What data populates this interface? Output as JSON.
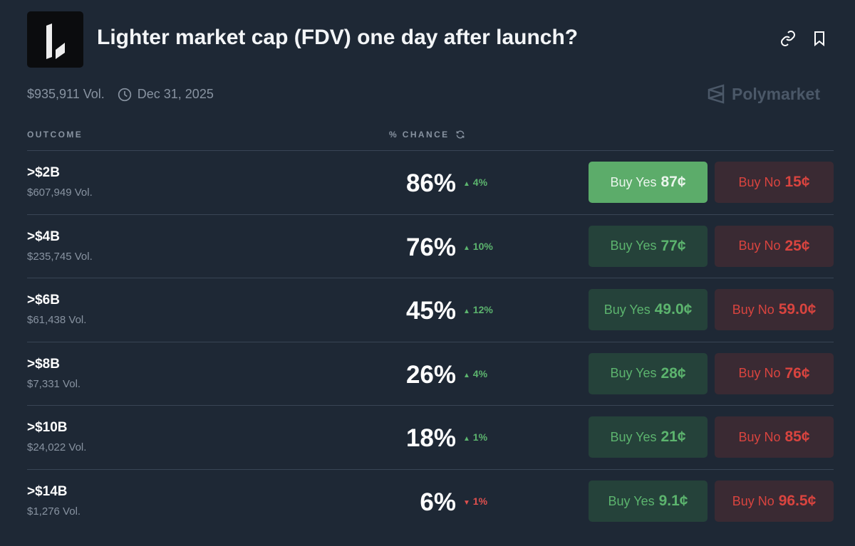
{
  "header": {
    "title": "Lighter market cap (FDV) one day after launch?",
    "volume": "$935,911 Vol.",
    "date": "Dec 31, 2025",
    "brand": "Polymarket"
  },
  "table": {
    "col_outcome": "OUTCOME",
    "col_chance": "% CHANCE"
  },
  "outcomes": [
    {
      "name": ">$2B",
      "volume": "$607,949 Vol.",
      "chance": "86%",
      "change": "4%",
      "direction": "up",
      "yes_label": "Buy Yes",
      "yes_price": "87¢",
      "no_label": "Buy No",
      "no_price": "15¢"
    },
    {
      "name": ">$4B",
      "volume": "$235,745 Vol.",
      "chance": "76%",
      "change": "10%",
      "direction": "up",
      "yes_label": "Buy Yes",
      "yes_price": "77¢",
      "no_label": "Buy No",
      "no_price": "25¢"
    },
    {
      "name": ">$6B",
      "volume": "$61,438 Vol.",
      "chance": "45%",
      "change": "12%",
      "direction": "up",
      "yes_label": "Buy Yes",
      "yes_price": "49.0¢",
      "no_label": "Buy No",
      "no_price": "59.0¢"
    },
    {
      "name": ">$8B",
      "volume": "$7,331 Vol.",
      "chance": "26%",
      "change": "4%",
      "direction": "up",
      "yes_label": "Buy Yes",
      "yes_price": "28¢",
      "no_label": "Buy No",
      "no_price": "76¢"
    },
    {
      "name": ">$10B",
      "volume": "$24,022 Vol.",
      "chance": "18%",
      "change": "1%",
      "direction": "up",
      "yes_label": "Buy Yes",
      "yes_price": "21¢",
      "no_label": "Buy No",
      "no_price": "85¢"
    },
    {
      "name": ">$14B",
      "volume": "$1,276 Vol.",
      "chance": "6%",
      "change": "1%",
      "direction": "down",
      "yes_label": "Buy Yes",
      "yes_price": "9.1¢",
      "no_label": "Buy No",
      "no_price": "96.5¢"
    }
  ],
  "colors": {
    "background": "#1e2835",
    "yes": "#5cb46e",
    "no": "#d9443f"
  }
}
